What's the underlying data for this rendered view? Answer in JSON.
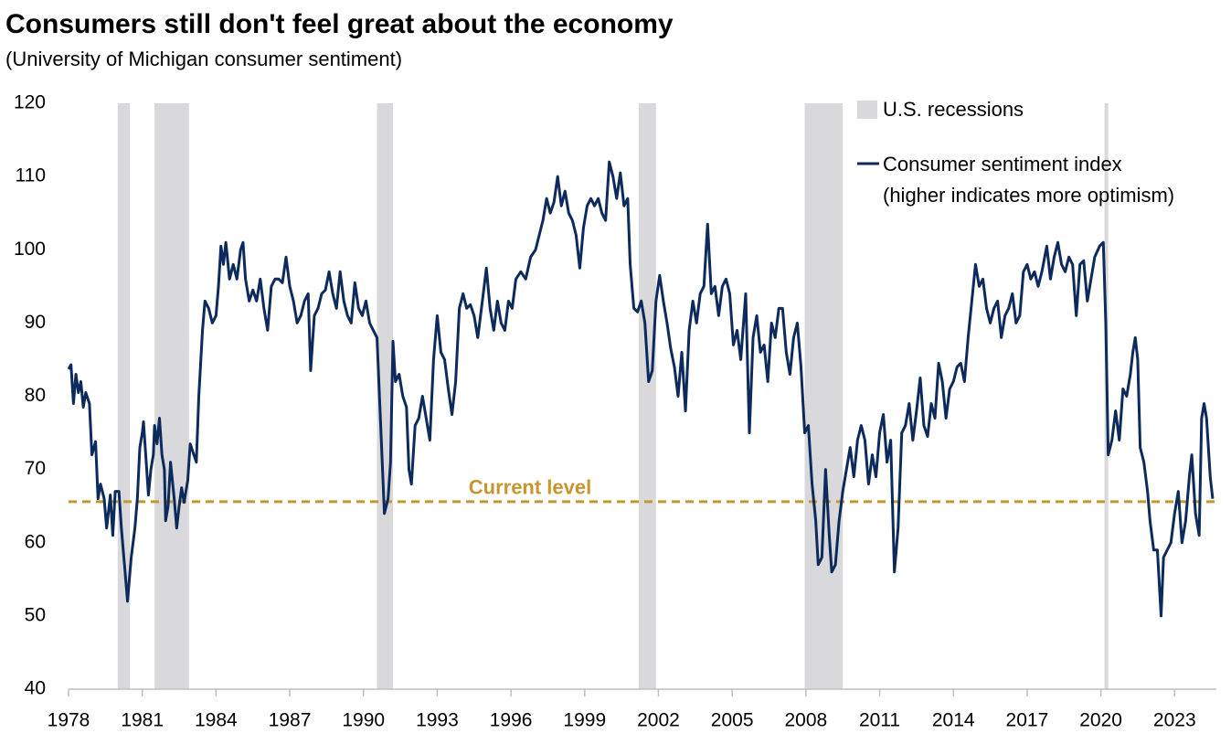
{
  "chart_data": {
    "type": "line",
    "title": "Consumers still don't feel great about the economy",
    "subtitle": "(University of Michigan consumer sentiment)",
    "xlim": [
      1978,
      2024.7
    ],
    "xticks": [
      1978,
      1981,
      1984,
      1987,
      1990,
      1993,
      1996,
      1999,
      2002,
      2005,
      2008,
      2011,
      2014,
      2017,
      2020,
      2023
    ],
    "ylim": [
      40,
      120
    ],
    "yticks": [
      40,
      50,
      60,
      70,
      80,
      90,
      100,
      110,
      120
    ],
    "grid": false,
    "legend": "top-right",
    "recession_legend": "U.S. recessions",
    "recession_color": "#d9d9dc",
    "recessions": [
      {
        "start": 1980.0,
        "end": 1980.5
      },
      {
        "start": 1981.5,
        "end": 1982.9
      },
      {
        "start": 1990.55,
        "end": 1991.2
      },
      {
        "start": 2001.2,
        "end": 2001.9
      },
      {
        "start": 2007.95,
        "end": 2009.5
      },
      {
        "start": 2020.15,
        "end": 2020.3
      }
    ],
    "reference_line": {
      "label": "Current level",
      "value": 65.6,
      "color": "#c8962e"
    },
    "series": [
      {
        "name": "Consumer sentiment index\n(higher indicates more optimism)",
        "color": "#0d2a5c",
        "x": [
          1978.0,
          1978.1,
          1978.2,
          1978.3,
          1978.4,
          1978.5,
          1978.6,
          1978.7,
          1978.85,
          1978.95,
          1979.1,
          1979.2,
          1979.3,
          1979.45,
          1979.55,
          1979.7,
          1979.8,
          1979.9,
          1980.05,
          1980.15,
          1980.3,
          1980.4,
          1980.55,
          1980.7,
          1980.8,
          1980.9,
          1981.0,
          1981.05,
          1981.15,
          1981.25,
          1981.35,
          1981.45,
          1981.5,
          1981.6,
          1981.7,
          1981.8,
          1981.9,
          1981.95,
          1982.05,
          1982.15,
          1982.3,
          1982.4,
          1982.5,
          1982.6,
          1982.7,
          1982.85,
          1982.95,
          1983.1,
          1983.2,
          1983.3,
          1983.45,
          1983.55,
          1983.7,
          1983.85,
          1984.0,
          1984.1,
          1984.2,
          1984.3,
          1984.4,
          1984.55,
          1984.7,
          1984.85,
          1985.0,
          1985.1,
          1985.2,
          1985.35,
          1985.5,
          1985.65,
          1985.8,
          1985.95,
          1986.1,
          1986.25,
          1986.4,
          1986.55,
          1986.7,
          1986.85,
          1987.0,
          1987.15,
          1987.3,
          1987.45,
          1987.6,
          1987.75,
          1987.85,
          1988.0,
          1988.15,
          1988.3,
          1988.45,
          1988.6,
          1988.75,
          1988.9,
          1989.05,
          1989.2,
          1989.35,
          1989.5,
          1989.65,
          1989.8,
          1989.95,
          1990.1,
          1990.25,
          1990.4,
          1990.55,
          1990.7,
          1990.85,
          1991.0,
          1991.1,
          1991.2,
          1991.3,
          1991.45,
          1991.6,
          1991.75,
          1991.85,
          1991.95,
          1992.1,
          1992.25,
          1992.4,
          1992.55,
          1992.7,
          1992.85,
          1993.0,
          1993.15,
          1993.3,
          1993.45,
          1993.6,
          1993.75,
          1993.9,
          1994.05,
          1994.2,
          1994.35,
          1994.5,
          1994.65,
          1994.8,
          1995.0,
          1995.15,
          1995.3,
          1995.45,
          1995.6,
          1995.75,
          1995.9,
          1996.05,
          1996.2,
          1996.4,
          1996.6,
          1996.8,
          1997.0,
          1997.15,
          1997.3,
          1997.45,
          1997.6,
          1997.75,
          1997.9,
          1998.05,
          1998.2,
          1998.35,
          1998.5,
          1998.65,
          1998.8,
          1998.95,
          1999.1,
          1999.25,
          1999.4,
          1999.55,
          1999.7,
          1999.85,
          2000.0,
          2000.15,
          2000.3,
          2000.45,
          2000.6,
          2000.75,
          2000.85,
          2001.0,
          2001.15,
          2001.3,
          2001.45,
          2001.6,
          2001.75,
          2001.9,
          2002.05,
          2002.2,
          2002.35,
          2002.5,
          2002.65,
          2002.8,
          2002.95,
          2003.1,
          2003.25,
          2003.4,
          2003.55,
          2003.7,
          2003.85,
          2004.0,
          2004.15,
          2004.3,
          2004.45,
          2004.6,
          2004.75,
          2004.9,
          2005.05,
          2005.2,
          2005.35,
          2005.55,
          2005.7,
          2005.85,
          2006.0,
          2006.15,
          2006.3,
          2006.45,
          2006.6,
          2006.75,
          2006.9,
          2007.05,
          2007.2,
          2007.35,
          2007.5,
          2007.65,
          2007.8,
          2007.95,
          2008.1,
          2008.25,
          2008.4,
          2008.5,
          2008.65,
          2008.8,
          2008.95,
          2009.05,
          2009.2,
          2009.35,
          2009.5,
          2009.65,
          2009.8,
          2009.95,
          2010.1,
          2010.25,
          2010.4,
          2010.55,
          2010.7,
          2010.85,
          2011.0,
          2011.15,
          2011.3,
          2011.45,
          2011.6,
          2011.75,
          2011.9,
          2012.05,
          2012.2,
          2012.35,
          2012.5,
          2012.65,
          2012.8,
          2012.95,
          2013.1,
          2013.25,
          2013.4,
          2013.55,
          2013.7,
          2013.85,
          2014.0,
          2014.15,
          2014.3,
          2014.45,
          2014.6,
          2014.75,
          2014.9,
          2015.05,
          2015.2,
          2015.35,
          2015.5,
          2015.65,
          2015.8,
          2015.95,
          2016.1,
          2016.25,
          2016.4,
          2016.55,
          2016.7,
          2016.85,
          2017.0,
          2017.15,
          2017.3,
          2017.45,
          2017.6,
          2017.8,
          2017.95,
          2018.1,
          2018.25,
          2018.4,
          2018.55,
          2018.7,
          2018.85,
          2019.0,
          2019.15,
          2019.3,
          2019.45,
          2019.6,
          2019.75,
          2019.95,
          2020.1,
          2020.2,
          2020.3,
          2020.45,
          2020.6,
          2020.75,
          2020.9,
          2021.05,
          2021.2,
          2021.3,
          2021.4,
          2021.5,
          2021.6,
          2021.75,
          2021.9,
          2022.0,
          2022.15,
          2022.3,
          2022.45,
          2022.55,
          2022.7,
          2022.85,
          2023.0,
          2023.15,
          2023.3,
          2023.45,
          2023.6,
          2023.7,
          2023.85,
          2024.0,
          2024.1,
          2024.2,
          2024.3,
          2024.45,
          2024.55
        ],
        "values": [
          83.7,
          84.3,
          79,
          83,
          80.5,
          82,
          78.5,
          80.5,
          79,
          72,
          73.8,
          66,
          68,
          66,
          62,
          66.5,
          61,
          67,
          67,
          62,
          56,
          52,
          58,
          62,
          66,
          73,
          75,
          76.5,
          71.5,
          66.5,
          70,
          72,
          76,
          73.5,
          77,
          72,
          70,
          63,
          65,
          71,
          66,
          62,
          65,
          67.5,
          65.5,
          68.5,
          73.5,
          72,
          71,
          80,
          89,
          93,
          92,
          90,
          91,
          95,
          100.5,
          98,
          101,
          96,
          98,
          96,
          100,
          101,
          96,
          93,
          94.5,
          93,
          96,
          92,
          89,
          95,
          96,
          96,
          95.5,
          99,
          95,
          93,
          90,
          91,
          93,
          94,
          83.5,
          91,
          92,
          94,
          94.5,
          97,
          94,
          92,
          97,
          93,
          91,
          90,
          95.5,
          92,
          91,
          93,
          90,
          89,
          88,
          76,
          64,
          66,
          71,
          87.5,
          82,
          83,
          80,
          78.5,
          70,
          68,
          76,
          77,
          80,
          77,
          74,
          85,
          91,
          86,
          85,
          81,
          77.5,
          82,
          92,
          94,
          92,
          92.5,
          91,
          88,
          92,
          97.5,
          92,
          89,
          93,
          90,
          89,
          93,
          92,
          96,
          97,
          96,
          99,
          100,
          102,
          104,
          107,
          105,
          106.5,
          110,
          106,
          108,
          105,
          104,
          102,
          97.5,
          103,
          106,
          107,
          106,
          107,
          105,
          104,
          112,
          110,
          107,
          110.5,
          106,
          107,
          98,
          92,
          91.5,
          93,
          90,
          82,
          83.5,
          93,
          96.5,
          93,
          90,
          86.5,
          84,
          80,
          86,
          78,
          89,
          93,
          90,
          94,
          95,
          103.5,
          94,
          95,
          91,
          95,
          96,
          94,
          87,
          89,
          85,
          94,
          75,
          88,
          91,
          86,
          87,
          82,
          90,
          88,
          92,
          92,
          86,
          83,
          88,
          90,
          84,
          75,
          76,
          68,
          63,
          57,
          58,
          70,
          61,
          56,
          57,
          63,
          67,
          70,
          73,
          69,
          74,
          76,
          74,
          68,
          72,
          69,
          75,
          77.5,
          71,
          74,
          56,
          62,
          75,
          76,
          79,
          74,
          78,
          82.5,
          76,
          74.5,
          79,
          77,
          84.5,
          82,
          77,
          81,
          82,
          84,
          84.5,
          82,
          88,
          93,
          98,
          95,
          96,
          92,
          90,
          92,
          93,
          88,
          91,
          92,
          94,
          90,
          91,
          97,
          98,
          96,
          97,
          95,
          97,
          100.5,
          96,
          99,
          101,
          98,
          97,
          99,
          98,
          91,
          98,
          98.5,
          93,
          96,
          99,
          100.5,
          101,
          90,
          72,
          74,
          78,
          74,
          81,
          80,
          83,
          86,
          88,
          85,
          73,
          71,
          67,
          63,
          59,
          59,
          50,
          58,
          59,
          60,
          64,
          67,
          60,
          63,
          69,
          72,
          64,
          61,
          77,
          79,
          77,
          69,
          66
        ]
      }
    ]
  }
}
